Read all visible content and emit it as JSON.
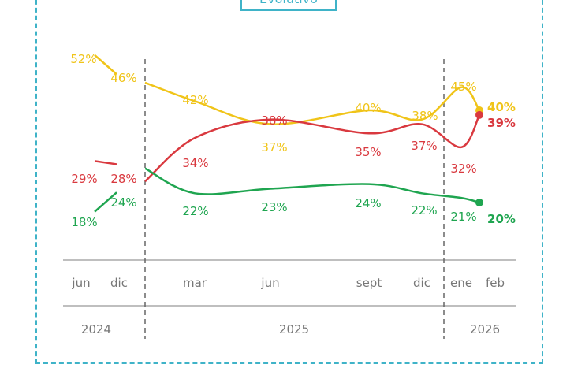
{
  "title": "Evolutivo",
  "chart_data": {
    "type": "line",
    "categories": [
      "jun",
      "dic",
      "mar",
      "jun",
      "sept",
      "dic",
      "ene",
      "feb"
    ],
    "years": [
      "2024",
      "2025",
      "2026"
    ],
    "series": [
      {
        "color": "#f0c419",
        "values": [
          52,
          46,
          42,
          37,
          40,
          38,
          45,
          40
        ],
        "labels": [
          "52%",
          "46%",
          "42%",
          "37%",
          "40%",
          "38%",
          "45%",
          "40%"
        ]
      },
      {
        "color": "#d9393f",
        "values": [
          29,
          28,
          34,
          38,
          35,
          37,
          32,
          39
        ],
        "labels": [
          "29%",
          "28%",
          "34%",
          "38%",
          "35%",
          "37%",
          "32%",
          "39%"
        ]
      },
      {
        "color": "#1fa550",
        "values": [
          18,
          24,
          22,
          23,
          24,
          22,
          21,
          20
        ],
        "labels": [
          "18%",
          "24%",
          "22%",
          "23%",
          "24%",
          "22%",
          "21%",
          "20%"
        ]
      }
    ],
    "ylim": [
      15,
      55
    ],
    "grid": false,
    "legend": "none"
  }
}
